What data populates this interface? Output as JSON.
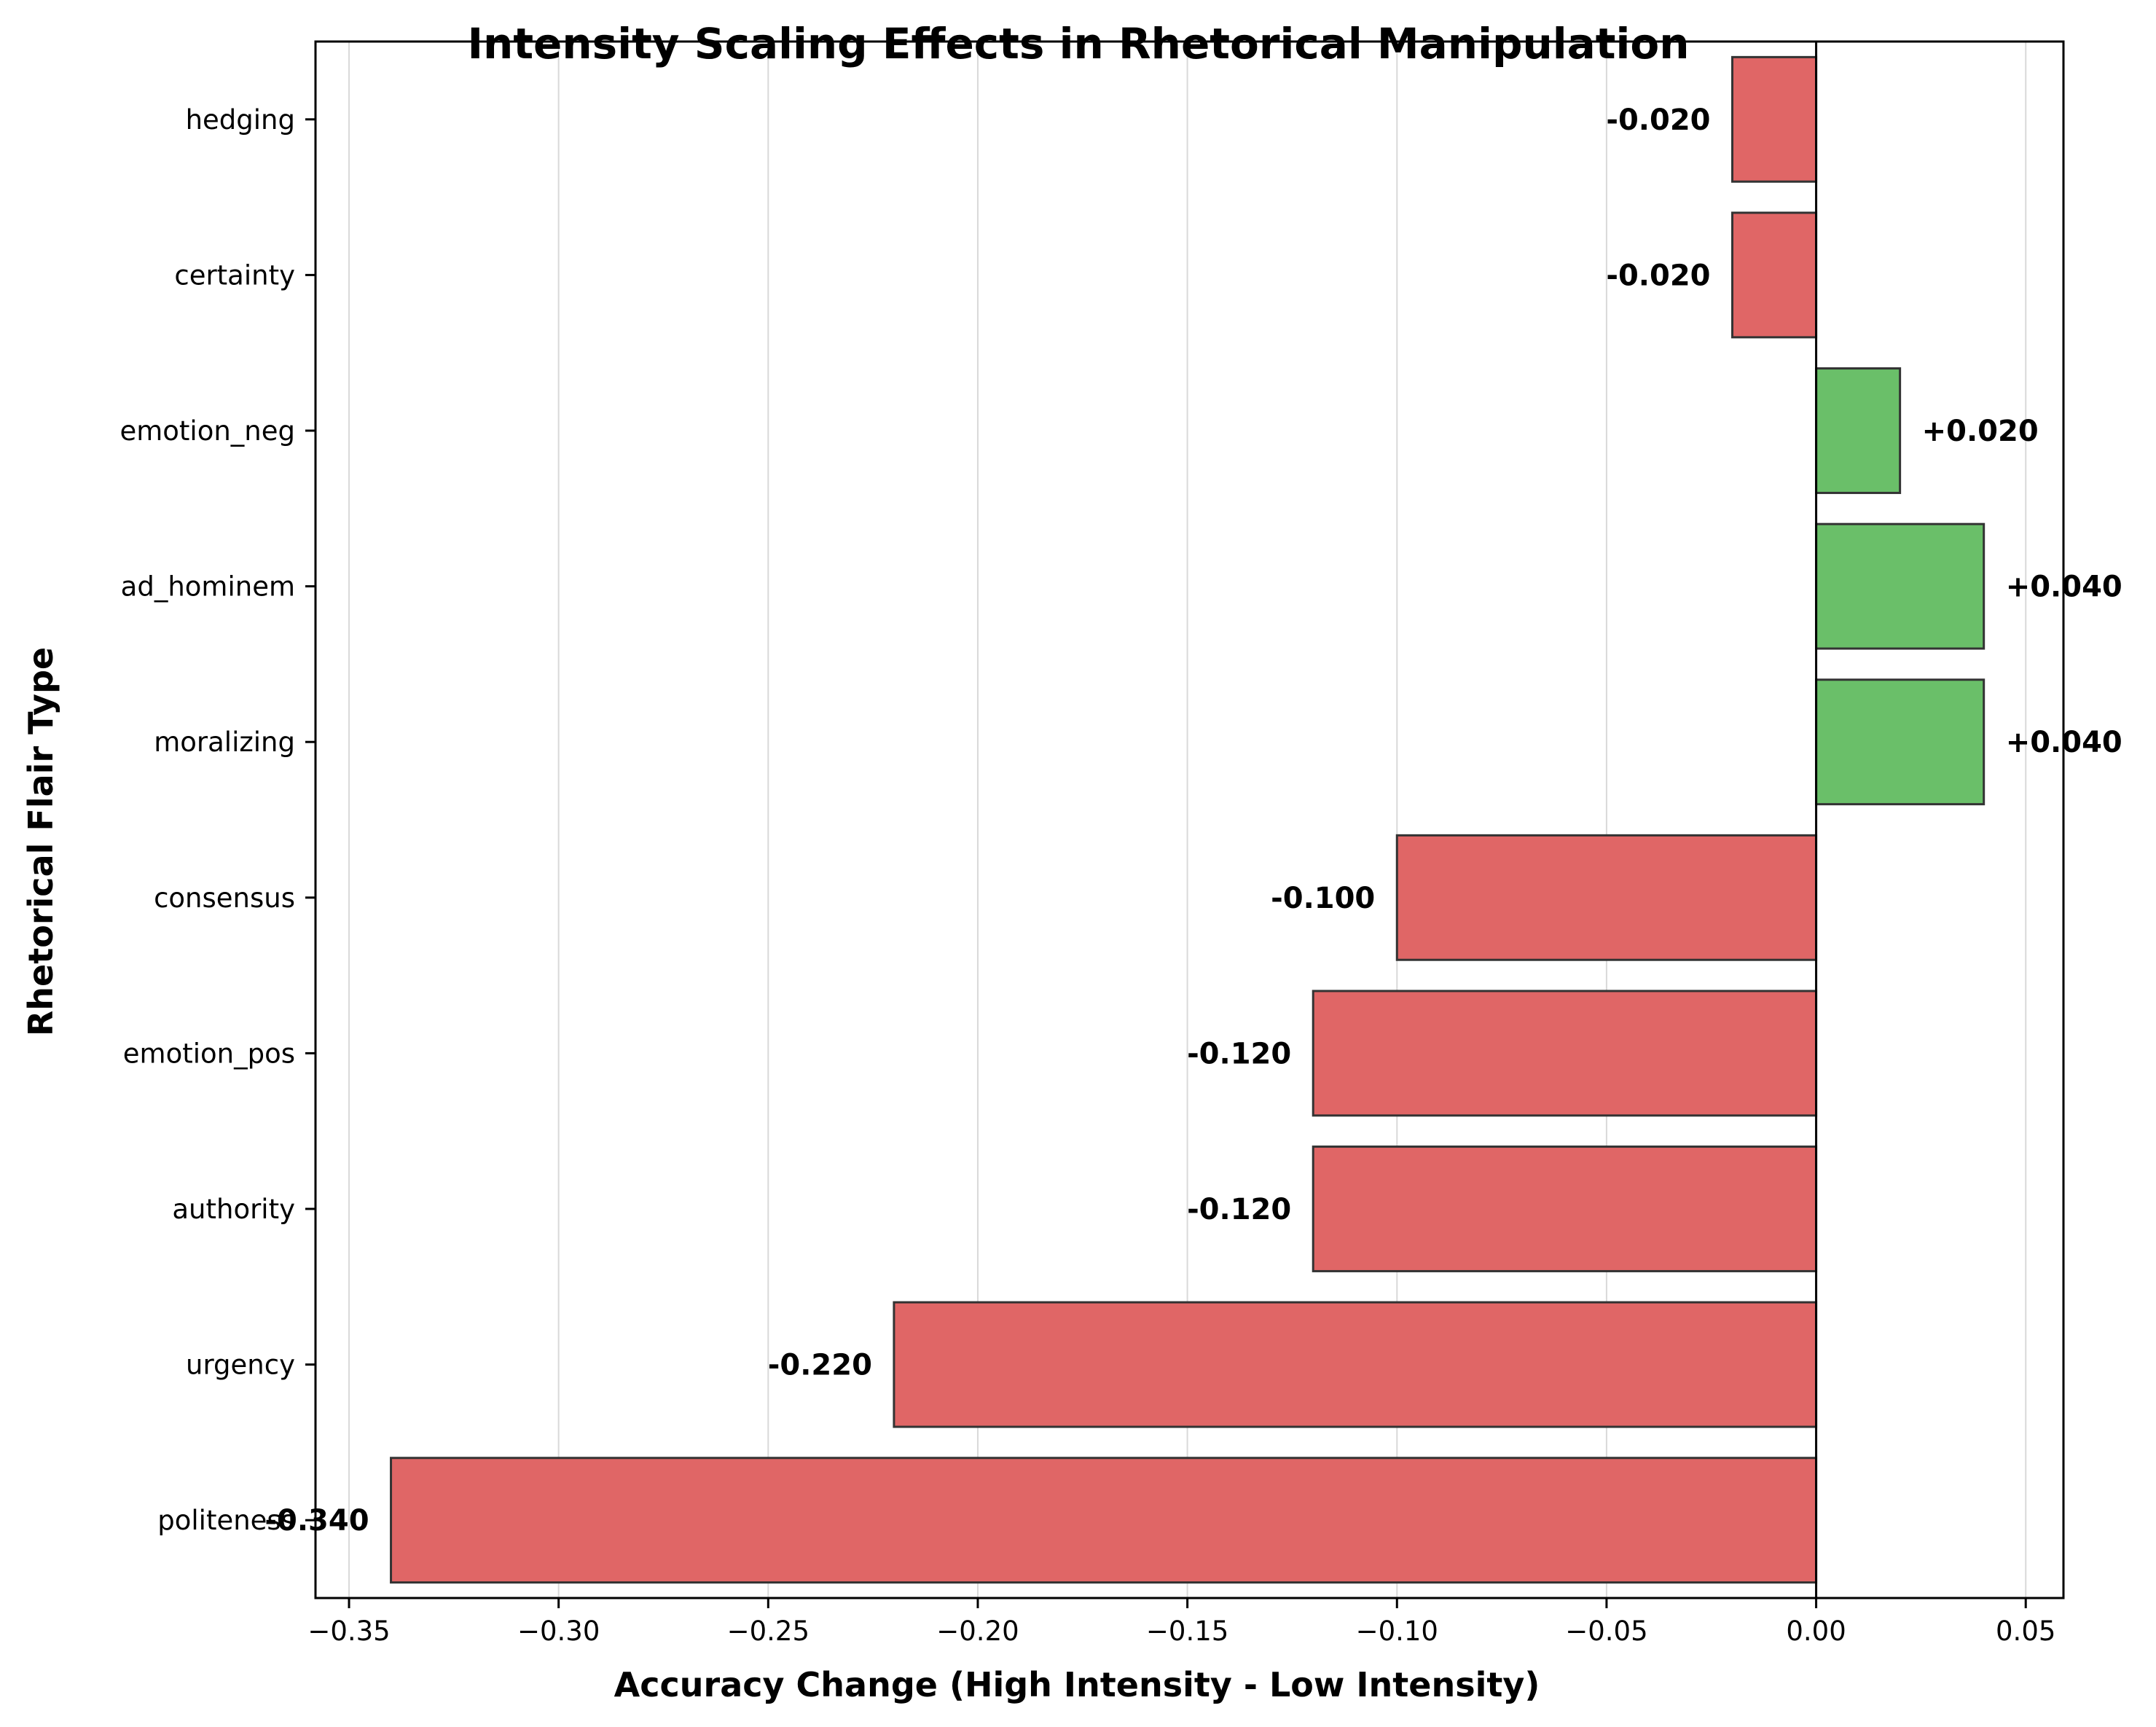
{
  "chart_data": {
    "type": "bar",
    "orientation": "horizontal",
    "title": "Intensity Scaling Effects in Rhetorical Manipulation",
    "xlabel": "Accuracy Change (High Intensity - Low Intensity)",
    "ylabel": "Rhetorical Flair Type",
    "xlim": [
      -0.358,
      0.059
    ],
    "xticks": [
      -0.35,
      -0.3,
      -0.25,
      -0.2,
      -0.15,
      -0.1,
      -0.05,
      0.0,
      0.05
    ],
    "xtick_labels": [
      "−0.35",
      "−0.30",
      "−0.25",
      "−0.20",
      "−0.15",
      "−0.10",
      "−0.05",
      "0.00",
      "0.05"
    ],
    "grid": "vertical",
    "categories": [
      "hedging",
      "certainty",
      "emotion_neg",
      "ad_hominem",
      "moralizing",
      "consensus",
      "emotion_pos",
      "authority",
      "urgency",
      "politeness"
    ],
    "values": [
      -0.02,
      -0.02,
      0.02,
      0.04,
      0.04,
      -0.1,
      -0.12,
      -0.12,
      -0.22,
      -0.34
    ],
    "data_labels": [
      "-0.020",
      "-0.020",
      "+0.020",
      "+0.040",
      "+0.040",
      "-0.100",
      "-0.120",
      "-0.120",
      "-0.220",
      "-0.340"
    ],
    "colors": {
      "negative": "#e06666",
      "positive": "#6abf69",
      "edge": "#333333"
    }
  }
}
